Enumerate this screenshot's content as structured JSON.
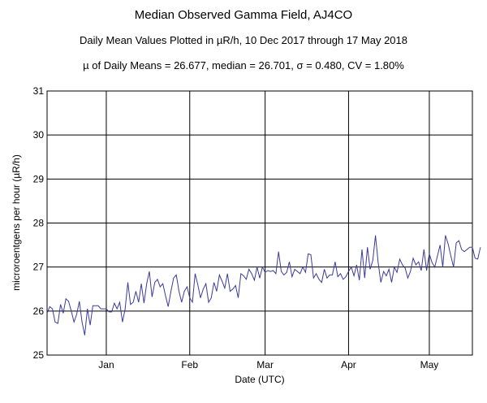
{
  "chart_data": {
    "type": "line",
    "title": "Median Observed Gamma Field, AJ4CO",
    "subtitle": "Daily Mean Values Plotted in µR/h, 10 Dec 2017 through 17 May 2018",
    "stats": "µ of Daily Means = 26.677,   median = 26.701,   σ = 0.480,   CV = 1.80%",
    "xlabel": "Date (UTC)",
    "ylabel": "microroentgens per hour (µR/h)",
    "xlim": [
      "2017-12-10",
      "2018-05-17"
    ],
    "ylim": [
      25,
      31
    ],
    "yticks": [
      25,
      26,
      27,
      28,
      29,
      30,
      31
    ],
    "xticks": [
      {
        "label": "Jan",
        "date": "2018-01-01"
      },
      {
        "label": "Feb",
        "date": "2018-02-01"
      },
      {
        "label": "Mar",
        "date": "2018-03-01"
      },
      {
        "label": "Apr",
        "date": "2018-04-01"
      },
      {
        "label": "May",
        "date": "2018-05-01"
      }
    ],
    "grid": true,
    "line_color": "#3b3b9e",
    "series": [
      {
        "start_date": "2017-12-10",
        "values": [
          25.95,
          26.1,
          26.05,
          25.75,
          25.72,
          26.15,
          25.95,
          26.28,
          26.22,
          26.0,
          25.75,
          25.93,
          26.22,
          25.75,
          25.45,
          26.05,
          25.68,
          26.12,
          26.12,
          26.12,
          26.05,
          26.05,
          26.05,
          25.98,
          25.98,
          26.18,
          26.05,
          26.2,
          25.75,
          26.05,
          26.65,
          26.15,
          26.2,
          26.45,
          26.2,
          26.62,
          26.18,
          26.62,
          26.9,
          26.32,
          26.65,
          26.72,
          26.55,
          26.62,
          26.35,
          26.1,
          26.45,
          26.75,
          26.82,
          26.45,
          26.2,
          26.45,
          26.55,
          26.3,
          26.2,
          26.85,
          26.6,
          26.3,
          26.5,
          26.62,
          26.2,
          26.3,
          26.65,
          26.45,
          26.82,
          26.68,
          26.52,
          26.85,
          26.45,
          26.5,
          26.58,
          26.3,
          26.85,
          26.8,
          26.72,
          26.95,
          26.85,
          26.7,
          27.0,
          26.75,
          27.0,
          26.88,
          26.92,
          26.9,
          26.92,
          26.85,
          27.35,
          26.9,
          26.82,
          26.88,
          27.12,
          26.78,
          26.95,
          26.9,
          26.85,
          27.0,
          26.88,
          27.3,
          27.28,
          26.75,
          26.85,
          26.72,
          26.65,
          26.95,
          26.75,
          26.82,
          26.82,
          27.12,
          26.78,
          26.85,
          26.72,
          26.78,
          26.9,
          27.0,
          26.8,
          27.05,
          26.7,
          27.4,
          26.75,
          27.45,
          26.95,
          27.15,
          27.72,
          27.1,
          26.65,
          26.9,
          26.8,
          26.95,
          26.65,
          27.0,
          26.88,
          27.18,
          27.05,
          26.98,
          26.75,
          26.9,
          27.2,
          27.05,
          27.12,
          26.92,
          27.4,
          26.92,
          27.3,
          27.1,
          27.0,
          27.25,
          27.5,
          27.0,
          27.72,
          27.52,
          27.25,
          27.0,
          27.55,
          27.6,
          27.4,
          27.35,
          27.4,
          27.45,
          27.45,
          27.2,
          27.18,
          27.45
        ]
      }
    ]
  }
}
